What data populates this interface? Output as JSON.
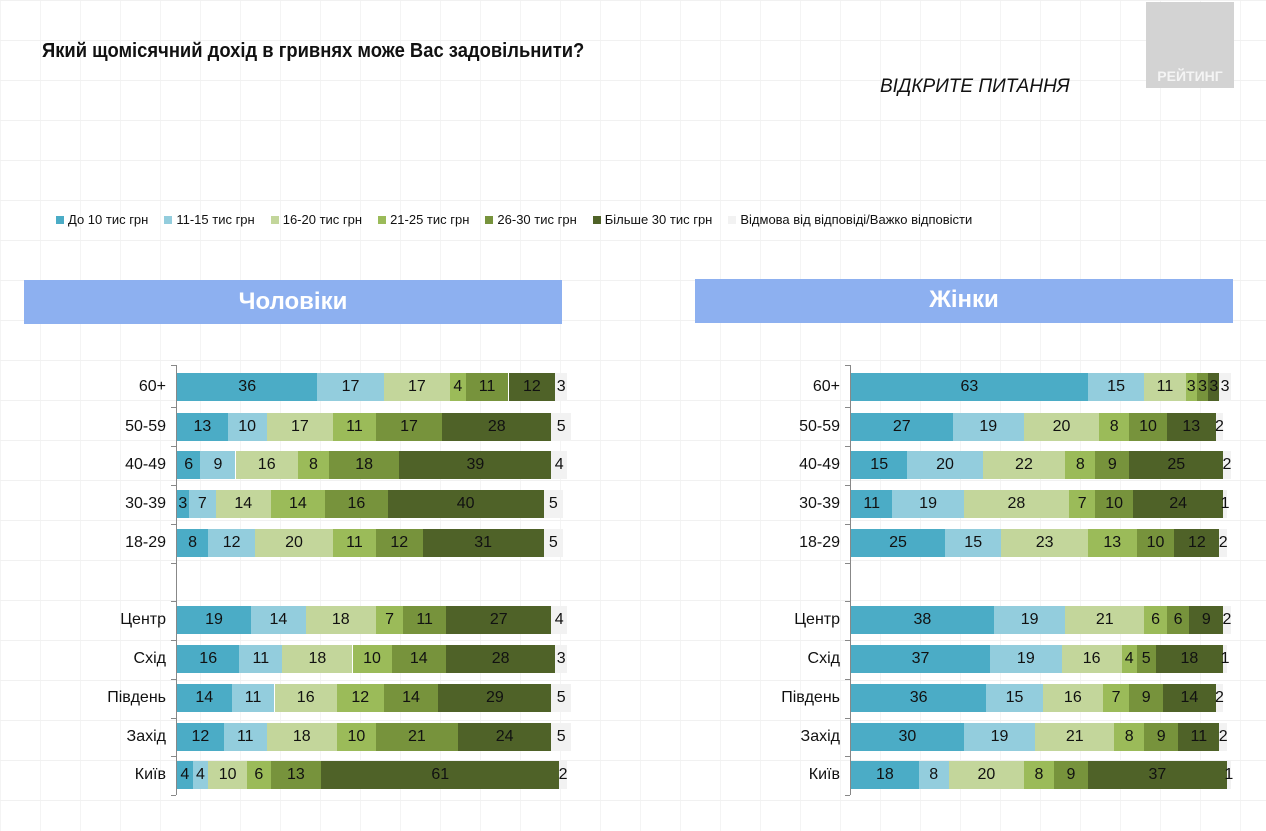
{
  "title": "Який щомісячний дохід в гривнях може Вас задовільнити?",
  "subtitle": "ВІДКРИТЕ ПИТАННЯ",
  "logo": "РЕЙТИНГ",
  "legend": [
    {
      "label": "До 10 тис грн",
      "color": "#4BACC6"
    },
    {
      "label": "11-15 тис грн",
      "color": "#93CDDD"
    },
    {
      "label": "16-20 тис грн",
      "color": "#C3D69B"
    },
    {
      "label": "21-25 тис грн",
      "color": "#9BBB59"
    },
    {
      "label": "26-30 тис грн",
      "color": "#77933C"
    },
    {
      "label": "Більше 30 тис грн",
      "color": "#4F6228"
    },
    {
      "label": "Відмова від відповіді/Важко відповісти",
      "color": "#F2F2F2"
    }
  ],
  "chart_data": [
    {
      "type": "bar",
      "orientation": "horizontal-stacked",
      "title": "Чоловіки",
      "categories": [
        "60+",
        "50-59",
        "40-49",
        "30-39",
        "18-29",
        "Центр",
        "Схід",
        "Південь",
        "Захід",
        "Київ"
      ],
      "series": [
        {
          "name": "До 10 тис грн",
          "values": [
            36,
            13,
            6,
            3,
            8,
            19,
            16,
            14,
            12,
            4
          ]
        },
        {
          "name": "11-15 тис грн",
          "values": [
            17,
            10,
            9,
            7,
            12,
            14,
            11,
            11,
            11,
            4
          ]
        },
        {
          "name": "16-20 тис грн",
          "values": [
            17,
            17,
            16,
            14,
            20,
            18,
            18,
            16,
            18,
            10
          ]
        },
        {
          "name": "21-25 тис грн",
          "values": [
            4,
            11,
            8,
            14,
            11,
            7,
            10,
            12,
            10,
            6
          ]
        },
        {
          "name": "26-30 тис грн",
          "values": [
            11,
            17,
            18,
            16,
            12,
            11,
            14,
            14,
            21,
            13
          ]
        },
        {
          "name": "Більше 30 тис грн",
          "values": [
            12,
            28,
            39,
            40,
            31,
            27,
            28,
            29,
            24,
            61
          ]
        },
        {
          "name": "Відмова від відповіді/Важко відповісти",
          "values": [
            3,
            5,
            4,
            5,
            5,
            4,
            3,
            5,
            5,
            2
          ]
        }
      ]
    },
    {
      "type": "bar",
      "orientation": "horizontal-stacked",
      "title": "Жінки",
      "categories": [
        "60+",
        "50-59",
        "40-49",
        "30-39",
        "18-29",
        "Центр",
        "Схід",
        "Південь",
        "Захід",
        "Київ"
      ],
      "series": [
        {
          "name": "До 10 тис грн",
          "values": [
            63,
            27,
            15,
            11,
            25,
            38,
            37,
            36,
            30,
            18
          ]
        },
        {
          "name": "11-15 тис грн",
          "values": [
            15,
            19,
            20,
            19,
            15,
            19,
            19,
            15,
            19,
            8
          ]
        },
        {
          "name": "16-20 тис грн",
          "values": [
            11,
            20,
            22,
            28,
            23,
            21,
            16,
            16,
            21,
            20
          ]
        },
        {
          "name": "21-25 тис грн",
          "values": [
            3,
            8,
            8,
            7,
            13,
            6,
            4,
            7,
            8,
            8
          ]
        },
        {
          "name": "26-30 тис грн",
          "values": [
            3,
            10,
            9,
            10,
            10,
            6,
            5,
            9,
            9,
            9
          ]
        },
        {
          "name": "Більше 30 тис грн",
          "values": [
            3,
            13,
            25,
            24,
            12,
            9,
            18,
            14,
            11,
            37
          ]
        },
        {
          "name": "Відмова від відповіді/Важко відповісти",
          "values": [
            3,
            2,
            2,
            1,
            2,
            2,
            1,
            2,
            2,
            1
          ]
        }
      ]
    }
  ]
}
